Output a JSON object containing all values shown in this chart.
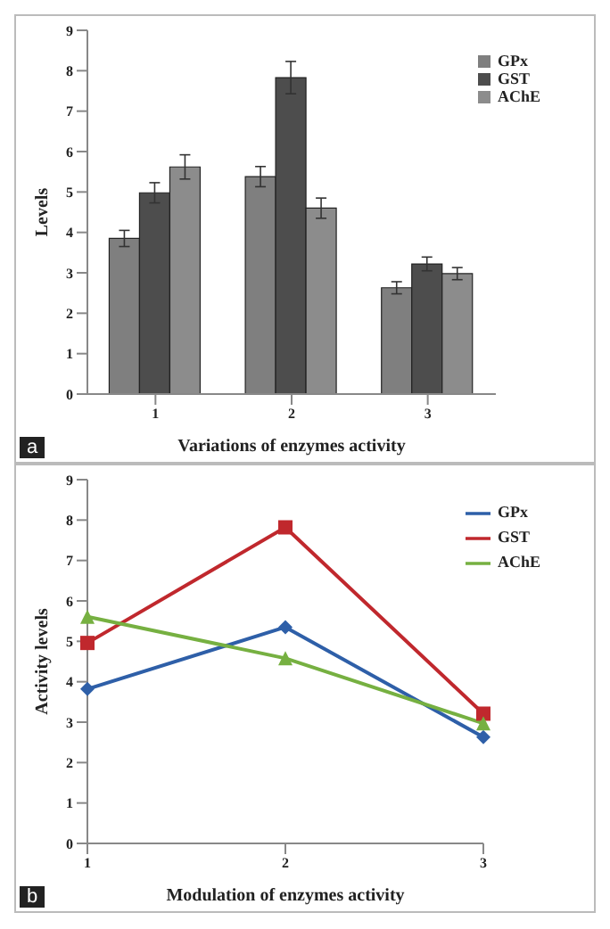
{
  "chart_data": [
    {
      "type": "bar",
      "xlabel": "Variations of enzymes activity",
      "ylabel": "Levels",
      "categories": [
        "1",
        "2",
        "3"
      ],
      "series": [
        {
          "name": "GPx",
          "color": "#7f7f7f",
          "values": [
            3.85,
            5.38,
            2.63
          ],
          "errors": [
            0.2,
            0.25,
            0.15
          ]
        },
        {
          "name": "GST",
          "color": "#4d4d4d",
          "values": [
            4.98,
            7.83,
            3.22
          ],
          "errors": [
            0.25,
            0.4,
            0.17
          ]
        },
        {
          "name": "AChE",
          "color": "#8c8c8c",
          "values": [
            5.62,
            4.6,
            2.98
          ],
          "errors": [
            0.3,
            0.25,
            0.15
          ]
        }
      ],
      "ylim": [
        0,
        9
      ],
      "yticks": [
        0,
        1,
        2,
        3,
        4,
        5,
        6,
        7,
        8,
        9
      ],
      "grid": false,
      "legend": "top right",
      "annotations": [
        "a"
      ]
    },
    {
      "type": "line",
      "xlabel": "Modulation of enzymes activity",
      "ylabel": "Activity levels",
      "categories": [
        "1",
        "2",
        "3"
      ],
      "series": [
        {
          "name": "GPx",
          "color": "#2e5fa8",
          "values": [
            3.82,
            5.35,
            2.63
          ],
          "marker": "diamond"
        },
        {
          "name": "GST",
          "color": "#c0282d",
          "values": [
            4.96,
            7.82,
            3.21
          ],
          "marker": "square"
        },
        {
          "name": "AChE",
          "color": "#76b041",
          "values": [
            5.61,
            4.58,
            2.97
          ],
          "marker": "triangle"
        }
      ],
      "ylim": [
        0,
        9
      ],
      "yticks": [
        0,
        1,
        2,
        3,
        4,
        5,
        6,
        7,
        8,
        9
      ],
      "grid": false,
      "legend": "top right",
      "annotations": [
        "b"
      ]
    }
  ]
}
